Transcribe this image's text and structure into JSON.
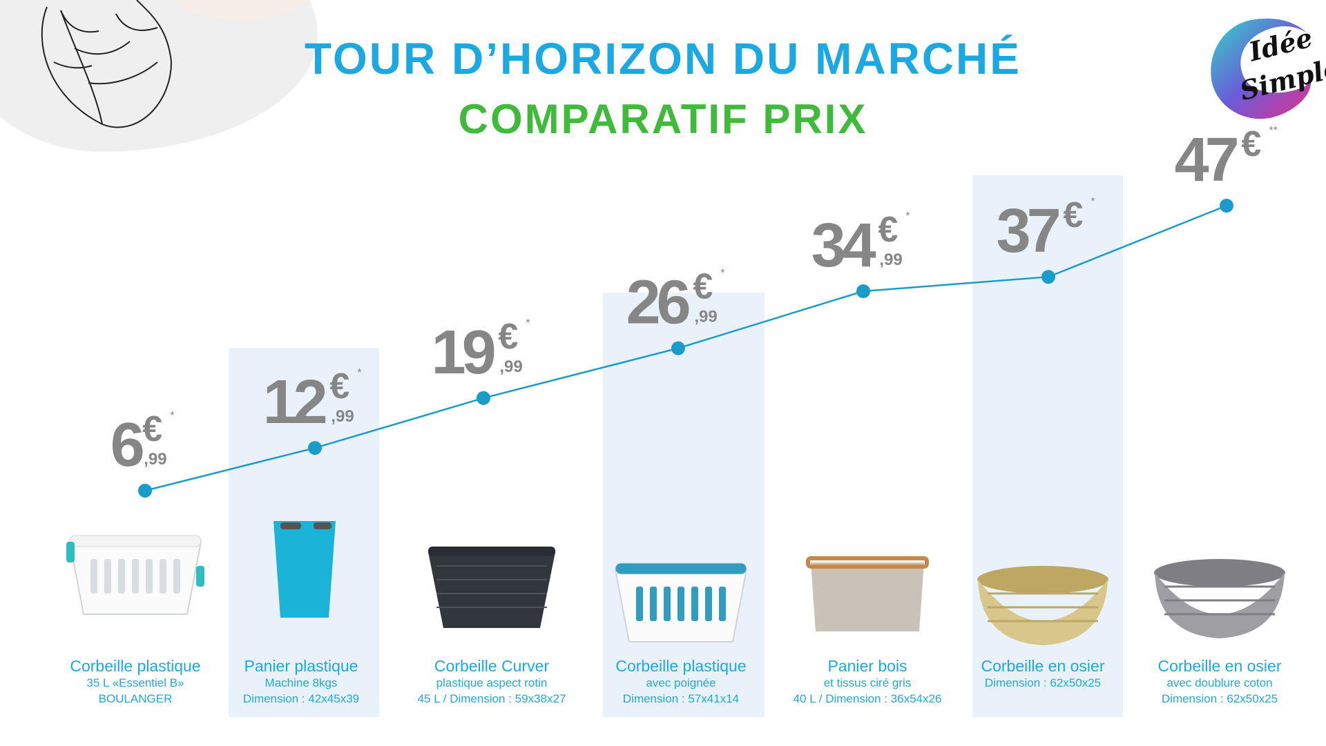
{
  "header": {
    "title": "TOUR D’HORIZON DU MARCHÉ",
    "subtitle": "COMPARATIF PRIX"
  },
  "logo": {
    "text_line1": "Idée",
    "text_line2": "Simple",
    "icon": "brand-logo"
  },
  "colors": {
    "title": "#1ca9e1",
    "subtitle": "#3fba3a",
    "line": "#1a9cc9",
    "highlight_column": "#e9f2fa",
    "price": "#868686"
  },
  "chart_data": {
    "type": "line",
    "title": "COMPARATIF PRIX",
    "xlabel": "",
    "ylabel": "",
    "ylim": [
      0,
      50
    ],
    "grid": false,
    "categories": [
      "Corbeille plastique",
      "Panier plastique",
      "Corbeille Curver",
      "Corbeille plastique",
      "Panier bois",
      "Corbeille en osier",
      "Corbeille en osier"
    ],
    "values": [
      6.99,
      12.99,
      19.99,
      26.99,
      34.99,
      37,
      47
    ],
    "price_labels": [
      {
        "euros": "6",
        "cents": ",99",
        "note": "*"
      },
      {
        "euros": "12",
        "cents": ",99",
        "note": "*"
      },
      {
        "euros": "19",
        "cents": ",99",
        "note": "*"
      },
      {
        "euros": "26",
        "cents": ",99",
        "note": "*"
      },
      {
        "euros": "34",
        "cents": ",99",
        "note": "*"
      },
      {
        "euros": "37",
        "cents": "",
        "note": "*"
      },
      {
        "euros": "47",
        "cents": "",
        "note": "**"
      }
    ],
    "currency": "€",
    "highlighted": [
      false,
      true,
      false,
      true,
      false,
      true,
      false
    ]
  },
  "products": [
    {
      "name": "Corbeille plastique",
      "details": [
        "35 L  «Essentiel B»",
        "BOULANGER"
      ],
      "icon": "white-plastic-basket-image",
      "color": "#ffffff"
    },
    {
      "name": "Panier plastique",
      "details": [
        "Machine 8kgs",
        "Dimension : 42x45x39"
      ],
      "icon": "blue-flexible-tub-image",
      "color": "#1cb3d8"
    },
    {
      "name": "Corbeille Curver",
      "details": [
        "plastique aspect rotin",
        "45 L / Dimension : 59x38x27"
      ],
      "icon": "dark-rattan-basket-image",
      "color": "#33373d"
    },
    {
      "name": "Corbeille plastique",
      "details": [
        "avec poignée",
        "Dimension : 57x41x14"
      ],
      "icon": "teal-white-basket-image",
      "color": "#2f9cc0"
    },
    {
      "name": "Panier bois",
      "details": [
        "et tissus ciré gris",
        "40 L / Dimension : 36x54x26"
      ],
      "icon": "wood-fabric-basket-image",
      "color": "#c9c2b8"
    },
    {
      "name": "Corbeille en osier",
      "details": [
        "Dimension : 62x50x25"
      ],
      "icon": "wicker-basket-image",
      "color": "#d8c68a"
    },
    {
      "name": "Corbeille en osier",
      "details": [
        "avec doublure coton",
        "Dimension : 62x50x25"
      ],
      "icon": "grey-wicker-basket-image",
      "color": "#9e9ea3"
    }
  ]
}
